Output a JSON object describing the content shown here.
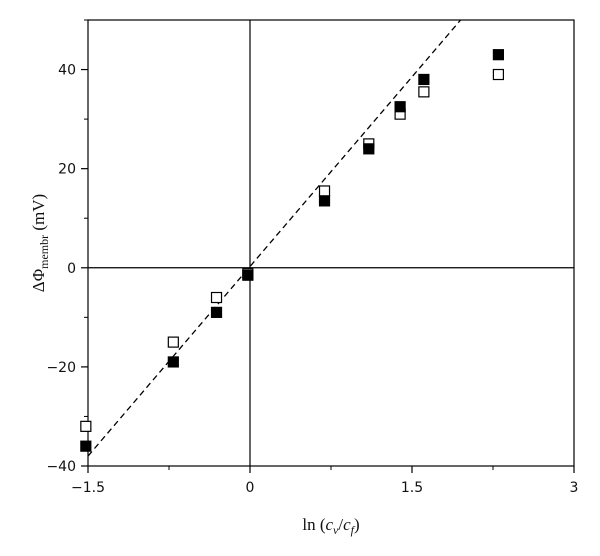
{
  "chart_data": {
    "type": "scatter",
    "xlabel": "ln (c_v/c_f)",
    "ylabel": "ΔΦ_membr (mV)",
    "xlim": [
      -1.5,
      3
    ],
    "ylim": [
      -40,
      50
    ],
    "xticks": [
      -1.5,
      0,
      1.5,
      3
    ],
    "xtick_labels": [
      "−1.5",
      "0",
      "1.5",
      "3"
    ],
    "yticks": [
      -40,
      -20,
      0,
      20,
      40
    ],
    "ytick_labels": [
      "−40",
      "−20",
      "0",
      "20",
      "40"
    ],
    "minor_x_step": 0.75,
    "minor_y_step": 10,
    "grid": false,
    "reference_lines": {
      "x": 0,
      "y": 0
    },
    "series": [
      {
        "marker": "filled-square",
        "color": "#000000",
        "x": [
          -1.52,
          -0.71,
          -0.31,
          -0.02,
          0.69,
          1.1,
          1.39,
          1.61,
          2.3
        ],
        "y": [
          -36,
          -19,
          -9,
          -1.5,
          13.5,
          24,
          32.5,
          38,
          43
        ]
      },
      {
        "marker": "open-square",
        "color": "#000000",
        "x": [
          -1.52,
          -0.71,
          -0.31,
          -0.02,
          0.69,
          1.1,
          1.39,
          1.61,
          2.3
        ],
        "y": [
          -32,
          -15,
          -6,
          -1.2,
          15.5,
          25,
          31,
          35.5,
          39
        ]
      }
    ],
    "fit_line": {
      "style": "dashed",
      "x": [
        -1.5,
        1.95
      ],
      "y": [
        -38,
        50
      ]
    }
  }
}
